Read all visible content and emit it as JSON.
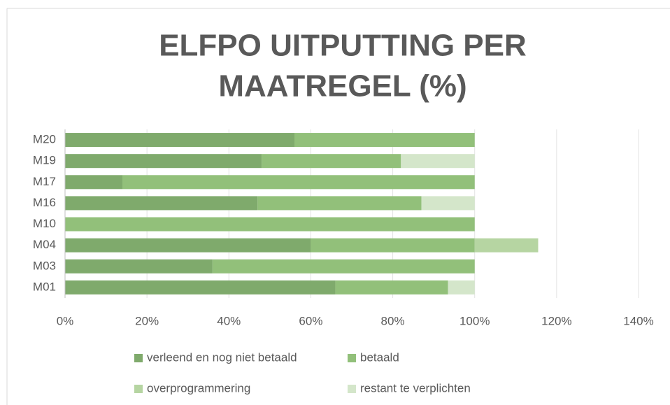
{
  "chart_data": {
    "type": "stacked_hbar",
    "title": "ELFPO UITPUTTING PER MAATREGEL (%)",
    "title_lines": [
      "ELFPO UITPUTTING PER",
      "MAATREGEL (%)"
    ],
    "categories": [
      "M20",
      "M19",
      "M17",
      "M16",
      "M10",
      "M04",
      "M03",
      "M01"
    ],
    "series": [
      {
        "name": "verleend en nog niet betaald",
        "color": "#7faa6c",
        "values": [
          56,
          48,
          14,
          47,
          0,
          60,
          36,
          66
        ]
      },
      {
        "name": "betaald",
        "color": "#92c07a",
        "values": [
          44,
          34,
          86,
          40,
          100,
          40,
          64,
          27.5
        ]
      },
      {
        "name": "overprogrammering",
        "color": "#b6d5a2",
        "values": [
          0,
          0,
          0,
          0,
          0,
          15.5,
          0,
          0
        ]
      },
      {
        "name": "restant te verplichten",
        "color": "#d4e6ca",
        "values": [
          0,
          18,
          0,
          13,
          0,
          0,
          0,
          6.5
        ]
      }
    ],
    "xlim": [
      0,
      140
    ],
    "xticks": [
      {
        "value": 0,
        "label": "0%"
      },
      {
        "value": 20,
        "label": "20%"
      },
      {
        "value": 40,
        "label": "40%"
      },
      {
        "value": 60,
        "label": "60%"
      },
      {
        "value": 80,
        "label": "80%"
      },
      {
        "value": 100,
        "label": "100%"
      },
      {
        "value": 120,
        "label": "120%"
      },
      {
        "value": 140,
        "label": "140%"
      }
    ],
    "grid": true,
    "legend": "bottom"
  }
}
